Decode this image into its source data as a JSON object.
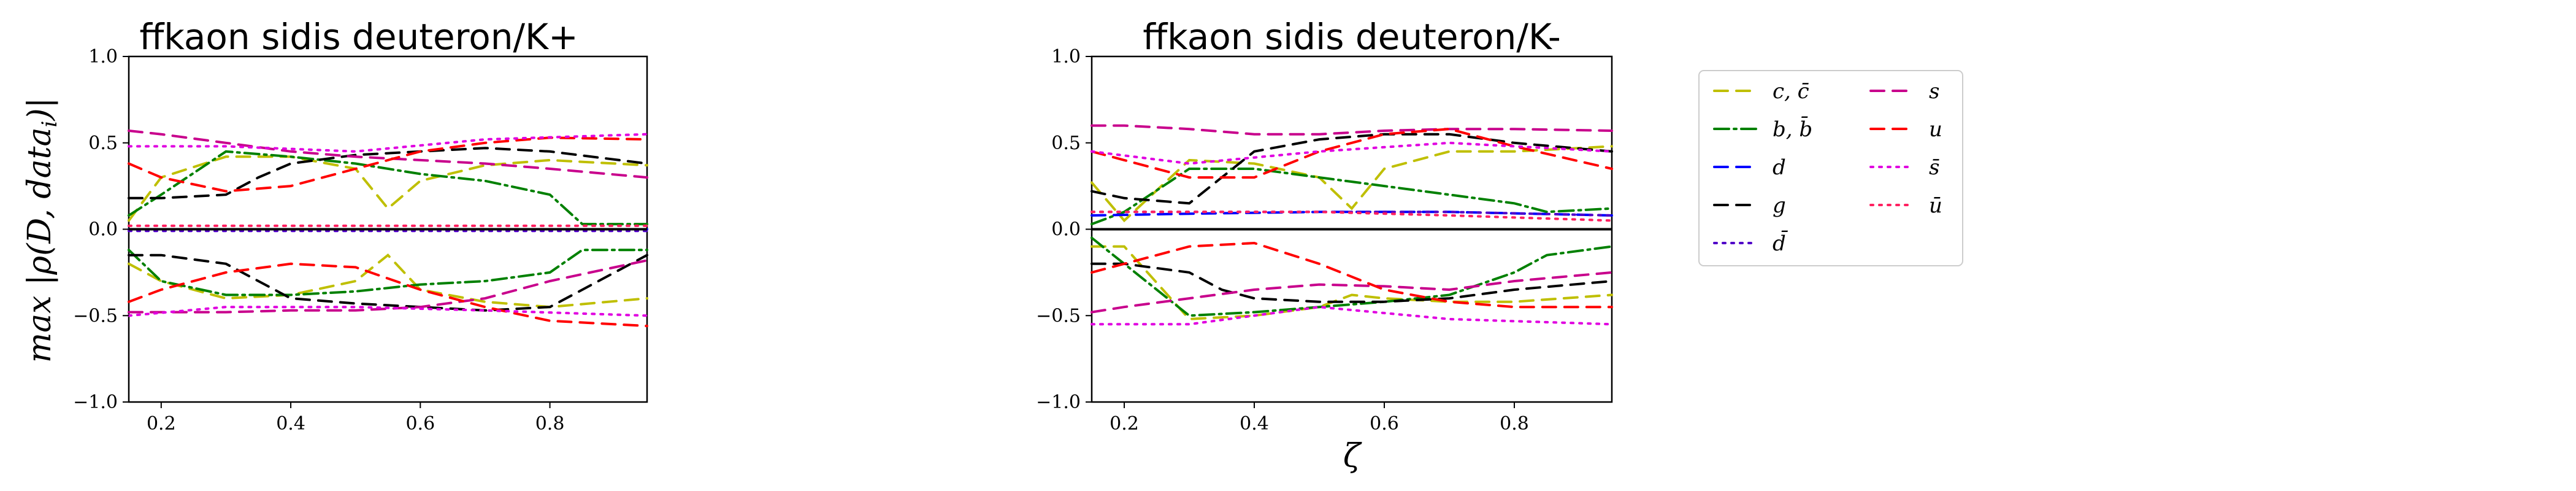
{
  "chart_data": [
    {
      "type": "line",
      "title": "ffkaon sidis deuteron/K+",
      "ylabel": "max |ρ(D, data_i)|",
      "xlabel": "",
      "xlim": [
        0.15,
        0.95
      ],
      "ylim": [
        -1.0,
        1.0
      ],
      "xticks": [
        "0.2",
        "0.4",
        "0.6",
        "0.8"
      ],
      "yticks": [
        "1.0",
        "0.5",
        "0.0",
        "−0.5",
        "−1.0"
      ],
      "series": [
        {
          "name": "c,c̄",
          "color": "#bfbf00",
          "dash": "22,14",
          "x": [
            0.15,
            0.2,
            0.3,
            0.4,
            0.5,
            0.55,
            0.6,
            0.7,
            0.8,
            0.95
          ],
          "y": [
            0.05,
            0.3,
            0.42,
            0.42,
            0.35,
            0.12,
            0.28,
            0.37,
            0.4,
            0.37
          ]
        },
        {
          "name": "c,c̄",
          "color": "#bfbf00",
          "dash": "22,14",
          "x": [
            0.15,
            0.2,
            0.3,
            0.4,
            0.5,
            0.55,
            0.6,
            0.7,
            0.8,
            0.95
          ],
          "y": [
            -0.2,
            -0.3,
            -0.4,
            -0.38,
            -0.3,
            -0.15,
            -0.35,
            -0.42,
            -0.45,
            -0.4
          ]
        },
        {
          "name": "b,b̄",
          "color": "#008000",
          "dash": "24,8,4,8",
          "x": [
            0.15,
            0.2,
            0.3,
            0.4,
            0.5,
            0.6,
            0.7,
            0.8,
            0.85,
            0.95
          ],
          "y": [
            0.08,
            0.2,
            0.45,
            0.42,
            0.38,
            0.32,
            0.28,
            0.2,
            0.03,
            0.03
          ]
        },
        {
          "name": "b,b̄",
          "color": "#008000",
          "dash": "24,8,4,8",
          "x": [
            0.15,
            0.2,
            0.3,
            0.4,
            0.5,
            0.6,
            0.7,
            0.8,
            0.85,
            0.95
          ],
          "y": [
            -0.12,
            -0.3,
            -0.38,
            -0.38,
            -0.36,
            -0.32,
            -0.3,
            -0.25,
            -0.12,
            -0.12
          ]
        },
        {
          "name": "d",
          "color": "#0000ff",
          "dash": "22,14",
          "x": [
            0.15,
            0.3,
            0.5,
            0.7,
            0.95
          ],
          "y": [
            0.0,
            0.0,
            0.0,
            0.0,
            0.0
          ]
        },
        {
          "name": "d̄",
          "color": "#5000c8",
          "dash": "4,10",
          "x": [
            0.15,
            0.3,
            0.5,
            0.7,
            0.95
          ],
          "y": [
            -0.01,
            -0.01,
            -0.01,
            -0.01,
            -0.01
          ]
        },
        {
          "name": "g",
          "color": "#000000",
          "dash": "22,14",
          "x": [
            0.15,
            0.2,
            0.3,
            0.35,
            0.4,
            0.5,
            0.6,
            0.7,
            0.8,
            0.95
          ],
          "y": [
            0.18,
            0.18,
            0.2,
            0.3,
            0.38,
            0.43,
            0.45,
            0.47,
            0.45,
            0.38
          ]
        },
        {
          "name": "g",
          "color": "#000000",
          "dash": "22,14",
          "x": [
            0.15,
            0.2,
            0.3,
            0.35,
            0.4,
            0.5,
            0.6,
            0.7,
            0.8,
            0.95
          ],
          "y": [
            -0.15,
            -0.15,
            -0.2,
            -0.3,
            -0.4,
            -0.43,
            -0.45,
            -0.47,
            -0.45,
            -0.15
          ]
        },
        {
          "name": "s",
          "color": "#c8008c",
          "dash": "22,14",
          "x": [
            0.15,
            0.2,
            0.3,
            0.4,
            0.5,
            0.6,
            0.7,
            0.8,
            0.95
          ],
          "y": [
            0.57,
            0.55,
            0.5,
            0.45,
            0.42,
            0.4,
            0.38,
            0.35,
            0.3
          ]
        },
        {
          "name": "s",
          "color": "#c8008c",
          "dash": "22,14",
          "x": [
            0.15,
            0.2,
            0.3,
            0.4,
            0.5,
            0.6,
            0.7,
            0.8,
            0.95
          ],
          "y": [
            -0.48,
            -0.48,
            -0.48,
            -0.47,
            -0.47,
            -0.45,
            -0.4,
            -0.3,
            -0.18
          ]
        },
        {
          "name": "u",
          "color": "#ff0000",
          "dash": "22,14",
          "x": [
            0.15,
            0.2,
            0.3,
            0.4,
            0.5,
            0.6,
            0.7,
            0.8,
            0.95
          ],
          "y": [
            0.38,
            0.3,
            0.22,
            0.25,
            0.35,
            0.45,
            0.5,
            0.53,
            0.52
          ]
        },
        {
          "name": "u",
          "color": "#ff0000",
          "dash": "22,14",
          "x": [
            0.15,
            0.2,
            0.3,
            0.4,
            0.5,
            0.6,
            0.7,
            0.8,
            0.95
          ],
          "y": [
            -0.42,
            -0.35,
            -0.25,
            -0.2,
            -0.22,
            -0.35,
            -0.45,
            -0.53,
            -0.56
          ]
        },
        {
          "name": "s̄",
          "color": "#e000e0",
          "dash": "4,10",
          "x": [
            0.15,
            0.3,
            0.5,
            0.7,
            0.95
          ],
          "y": [
            0.48,
            0.48,
            0.45,
            0.52,
            0.55
          ]
        },
        {
          "name": "s̄",
          "color": "#e000e0",
          "dash": "4,10",
          "x": [
            0.15,
            0.3,
            0.5,
            0.7,
            0.95
          ],
          "y": [
            -0.5,
            -0.45,
            -0.45,
            -0.47,
            -0.5
          ]
        },
        {
          "name": "ū",
          "color": "#ff2060",
          "dash": "4,10",
          "x": [
            0.15,
            0.3,
            0.5,
            0.7,
            0.95
          ],
          "y": [
            0.02,
            0.02,
            0.02,
            0.02,
            0.02
          ]
        }
      ]
    },
    {
      "type": "line",
      "title": "ffkaon sidis deuteron/K-",
      "ylabel": "",
      "xlabel": "ζ",
      "xlim": [
        0.15,
        0.95
      ],
      "ylim": [
        -1.0,
        1.0
      ],
      "xticks": [
        "0.2",
        "0.4",
        "0.6",
        "0.8"
      ],
      "yticks": [
        "1.0",
        "0.5",
        "0.0",
        "−0.5",
        "−1.0"
      ],
      "series": [
        {
          "name": "c,c̄",
          "color": "#bfbf00",
          "dash": "22,14",
          "x": [
            0.15,
            0.2,
            0.3,
            0.4,
            0.5,
            0.55,
            0.6,
            0.7,
            0.8,
            0.95
          ],
          "y": [
            0.27,
            0.05,
            0.4,
            0.38,
            0.3,
            0.12,
            0.35,
            0.45,
            0.45,
            0.48
          ]
        },
        {
          "name": "c,c̄",
          "color": "#bfbf00",
          "dash": "22,14",
          "x": [
            0.15,
            0.2,
            0.3,
            0.4,
            0.5,
            0.55,
            0.6,
            0.7,
            0.8,
            0.95
          ],
          "y": [
            -0.1,
            -0.1,
            -0.52,
            -0.5,
            -0.45,
            -0.38,
            -0.4,
            -0.42,
            -0.42,
            -0.38
          ]
        },
        {
          "name": "b,b̄",
          "color": "#008000",
          "dash": "24,8,4,8",
          "x": [
            0.15,
            0.2,
            0.3,
            0.4,
            0.5,
            0.6,
            0.7,
            0.8,
            0.85,
            0.95
          ],
          "y": [
            0.03,
            0.1,
            0.35,
            0.35,
            0.3,
            0.25,
            0.2,
            0.15,
            0.1,
            0.12
          ]
        },
        {
          "name": "b,b̄",
          "color": "#008000",
          "dash": "24,8,4,8",
          "x": [
            0.15,
            0.2,
            0.3,
            0.4,
            0.5,
            0.6,
            0.7,
            0.8,
            0.85,
            0.95
          ],
          "y": [
            -0.05,
            -0.2,
            -0.5,
            -0.48,
            -0.45,
            -0.42,
            -0.38,
            -0.25,
            -0.15,
            -0.1
          ]
        },
        {
          "name": "d",
          "color": "#0000ff",
          "dash": "22,14",
          "x": [
            0.15,
            0.3,
            0.5,
            0.7,
            0.95
          ],
          "y": [
            0.08,
            0.09,
            0.1,
            0.1,
            0.08
          ]
        },
        {
          "name": "d̄",
          "color": "#5000c8",
          "dash": "4,10",
          "x": [
            0.15,
            0.3,
            0.5,
            0.7,
            0.95
          ],
          "y": [
            0.1,
            0.1,
            0.1,
            0.1,
            0.08
          ]
        },
        {
          "name": "g",
          "color": "#000000",
          "dash": "22,14",
          "x": [
            0.15,
            0.2,
            0.3,
            0.35,
            0.4,
            0.5,
            0.6,
            0.7,
            0.8,
            0.95
          ],
          "y": [
            0.22,
            0.18,
            0.15,
            0.3,
            0.45,
            0.52,
            0.55,
            0.55,
            0.5,
            0.45
          ]
        },
        {
          "name": "g",
          "color": "#000000",
          "dash": "22,14",
          "x": [
            0.15,
            0.2,
            0.3,
            0.35,
            0.4,
            0.5,
            0.6,
            0.7,
            0.8,
            0.95
          ],
          "y": [
            -0.2,
            -0.2,
            -0.25,
            -0.35,
            -0.4,
            -0.42,
            -0.42,
            -0.4,
            -0.35,
            -0.3
          ]
        },
        {
          "name": "s",
          "color": "#c8008c",
          "dash": "22,14",
          "x": [
            0.15,
            0.2,
            0.3,
            0.4,
            0.5,
            0.6,
            0.7,
            0.8,
            0.95
          ],
          "y": [
            0.6,
            0.6,
            0.58,
            0.55,
            0.55,
            0.57,
            0.58,
            0.58,
            0.57
          ]
        },
        {
          "name": "s",
          "color": "#c8008c",
          "dash": "22,14",
          "x": [
            0.15,
            0.2,
            0.3,
            0.4,
            0.5,
            0.6,
            0.7,
            0.8,
            0.95
          ],
          "y": [
            -0.48,
            -0.45,
            -0.4,
            -0.35,
            -0.32,
            -0.33,
            -0.35,
            -0.3,
            -0.25
          ]
        },
        {
          "name": "u",
          "color": "#ff0000",
          "dash": "22,14",
          "x": [
            0.15,
            0.2,
            0.3,
            0.4,
            0.5,
            0.6,
            0.7,
            0.8,
            0.95
          ],
          "y": [
            0.45,
            0.4,
            0.3,
            0.3,
            0.45,
            0.55,
            0.58,
            0.48,
            0.35
          ]
        },
        {
          "name": "u",
          "color": "#ff0000",
          "dash": "22,14",
          "x": [
            0.15,
            0.2,
            0.3,
            0.4,
            0.5,
            0.6,
            0.7,
            0.8,
            0.95
          ],
          "y": [
            -0.25,
            -0.2,
            -0.1,
            -0.08,
            -0.2,
            -0.35,
            -0.42,
            -0.45,
            -0.45
          ]
        },
        {
          "name": "s̄",
          "color": "#e000e0",
          "dash": "4,10",
          "x": [
            0.15,
            0.3,
            0.5,
            0.7,
            0.95
          ],
          "y": [
            0.45,
            0.38,
            0.45,
            0.5,
            0.45
          ]
        },
        {
          "name": "s̄",
          "color": "#e000e0",
          "dash": "4,10",
          "x": [
            0.15,
            0.3,
            0.5,
            0.7,
            0.95
          ],
          "y": [
            -0.55,
            -0.55,
            -0.45,
            -0.52,
            -0.55
          ]
        },
        {
          "name": "ū",
          "color": "#ff2060",
          "dash": "4,10",
          "x": [
            0.15,
            0.3,
            0.5,
            0.7,
            0.95
          ],
          "y": [
            0.1,
            0.1,
            0.1,
            0.08,
            0.05
          ]
        }
      ]
    }
  ],
  "legend": {
    "placement": "right",
    "entries": [
      {
        "label": "c, c̄",
        "color": "#bfbf00",
        "dash": "22,14",
        "style": "dashdot"
      },
      {
        "label": "b, b̄",
        "color": "#008000",
        "dash": "24,8,4,8",
        "style": "dashdot"
      },
      {
        "label": "d",
        "color": "#0000ff",
        "dash": "22,14",
        "style": "dashed"
      },
      {
        "label": "g",
        "color": "#000000",
        "dash": "22,14",
        "style": "dashed"
      },
      {
        "label": "d̄",
        "color": "#5000c8",
        "dash": "4,10",
        "style": "dotted"
      },
      {
        "label": "s",
        "color": "#c8008c",
        "dash": "22,14",
        "style": "dashed"
      },
      {
        "label": "u",
        "color": "#ff0000",
        "dash": "22,14",
        "style": "dashed"
      },
      {
        "label": "s̄",
        "color": "#e000e0",
        "dash": "4,10",
        "style": "dotted"
      },
      {
        "label": "ū",
        "color": "#ff2060",
        "dash": "4,10",
        "style": "dotted"
      }
    ]
  }
}
